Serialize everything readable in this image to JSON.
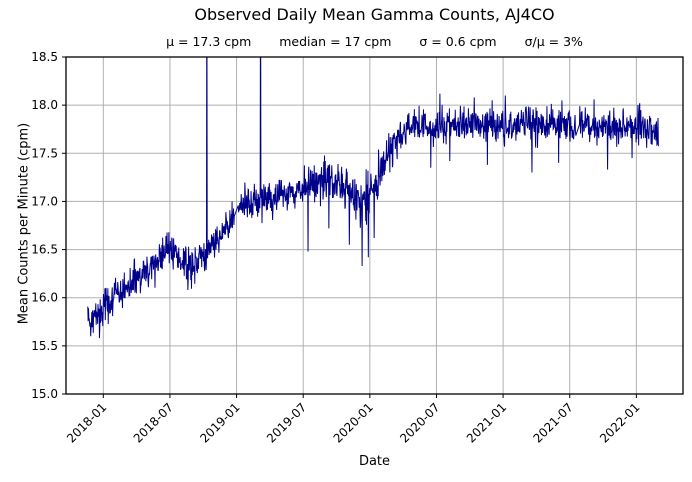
{
  "title": "Observed Daily Mean Gamma Counts, AJ4CO",
  "subtitle": {
    "mu": "μ = 17.3 cpm",
    "median": "median = 17 cpm",
    "sigma": "σ = 0.6 cpm",
    "ratio": "σ/μ = 3%"
  },
  "chart_data": {
    "type": "line",
    "title": "Observed Daily Mean Gamma Counts, AJ4CO",
    "subtitle_stats": {
      "mean_cpm": 17.3,
      "median_cpm": 17,
      "sigma_cpm": 0.6,
      "sigma_over_mu_pct": 3
    },
    "xlabel": "Date",
    "ylabel": "Mean Counts per Minute (cpm)",
    "ylim": [
      15.0,
      18.5
    ],
    "y_ticks": [
      15.0,
      15.5,
      16.0,
      16.5,
      17.0,
      17.5,
      18.0,
      18.5
    ],
    "x_tick_labels": [
      "2018-01",
      "2018-07",
      "2019-01",
      "2019-07",
      "2020-01",
      "2020-07",
      "2021-01",
      "2021-07",
      "2022-01"
    ],
    "x_tick_months": [
      0,
      6,
      12,
      18,
      24,
      30,
      36,
      42,
      48
    ],
    "xlim_months": [
      -3.36,
      52.2
    ],
    "months_epoch_label": "2018-01",
    "grid": true,
    "grid_color": "#b0b0b0",
    "spine_color": "#000000",
    "background": "#ffffff",
    "series": {
      "name": "observed daily mean gamma counts",
      "color": "#00008b",
      "start_month": -1.4,
      "end_month": 50.0,
      "points_per_month": 30.4,
      "trend_anchors": [
        [
          -1.4,
          15.82
        ],
        [
          -0.8,
          15.79
        ],
        [
          0,
          15.9
        ],
        [
          1,
          16.0
        ],
        [
          2,
          16.1
        ],
        [
          3,
          16.18
        ],
        [
          4,
          16.28
        ],
        [
          5,
          16.4
        ],
        [
          5.8,
          16.5
        ],
        [
          6.5,
          16.44
        ],
        [
          7.5,
          16.3
        ],
        [
          8.5,
          16.4
        ],
        [
          9.3,
          16.47
        ],
        [
          10,
          16.58
        ],
        [
          11,
          16.72
        ],
        [
          11.8,
          16.84
        ],
        [
          12.2,
          16.93
        ],
        [
          13,
          17.0
        ],
        [
          14,
          17.02
        ],
        [
          15,
          17.04
        ],
        [
          16,
          17.05
        ],
        [
          17,
          17.1
        ],
        [
          18,
          17.14
        ],
        [
          19,
          17.2
        ],
        [
          20,
          17.24
        ],
        [
          21,
          17.18
        ],
        [
          22,
          17.1
        ],
        [
          23,
          17.0
        ],
        [
          24,
          17.08
        ],
        [
          24.8,
          17.25
        ],
        [
          25.5,
          17.45
        ],
        [
          26.2,
          17.6
        ],
        [
          27,
          17.72
        ],
        [
          28,
          17.77
        ],
        [
          30,
          17.78
        ],
        [
          33,
          17.8
        ],
        [
          36,
          17.78
        ],
        [
          39,
          17.8
        ],
        [
          42,
          17.78
        ],
        [
          45,
          17.79
        ],
        [
          48,
          17.78
        ],
        [
          50,
          17.74
        ]
      ],
      "noise_sd_anchors": [
        [
          -1.4,
          0.09
        ],
        [
          6,
          0.09
        ],
        [
          8,
          0.1
        ],
        [
          12,
          0.08
        ],
        [
          18,
          0.09
        ],
        [
          21,
          0.11
        ],
        [
          23.5,
          0.13
        ],
        [
          24.5,
          0.14
        ],
        [
          26,
          0.1
        ],
        [
          28,
          0.09
        ],
        [
          50,
          0.09
        ]
      ],
      "outliers": [
        [
          -1.15,
          15.6
        ],
        [
          -0.35,
          15.58
        ],
        [
          5.9,
          16.68
        ],
        [
          7.6,
          16.08
        ],
        [
          18.43,
          16.48
        ],
        [
          20.3,
          16.72
        ],
        [
          22.15,
          16.55
        ],
        [
          23.3,
          16.33
        ],
        [
          23.85,
          16.42
        ],
        [
          24.4,
          16.62
        ],
        [
          29.5,
          17.35
        ],
        [
          30.3,
          18.12
        ],
        [
          31.2,
          17.42
        ],
        [
          33.4,
          18.08
        ],
        [
          34.6,
          17.38
        ],
        [
          36.2,
          18.1
        ],
        [
          38.6,
          17.3
        ],
        [
          41.0,
          17.4
        ],
        [
          41.3,
          18.05
        ],
        [
          44.2,
          18.06
        ],
        [
          45.4,
          17.33
        ],
        [
          47.6,
          17.45
        ],
        [
          48.3,
          18.02
        ]
      ],
      "clipped_spikes_months": [
        9.32,
        14.15
      ],
      "gaps_months": [
        [
          11.8,
          12.15
        ],
        [
          42.55,
          42.85
        ]
      ]
    }
  }
}
